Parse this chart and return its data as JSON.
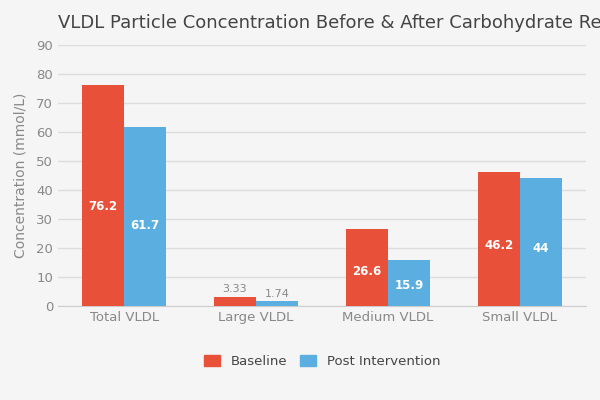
{
  "title": "VLDL Particle Concentration Before & After Carbohydrate Restriction",
  "ylabel": "Concentration (mmol/L)",
  "categories": [
    "Total VLDL",
    "Large VLDL",
    "Medium VLDL",
    "Small VLDL"
  ],
  "baseline": [
    76.2,
    3.33,
    26.6,
    46.2
  ],
  "post_intervention": [
    61.7,
    1.74,
    15.9,
    44
  ],
  "baseline_color": "#E8503A",
  "post_color": "#5BAEE0",
  "background_color": "#F5F5F5",
  "plot_bg_color": "#F5F5F5",
  "ylim": [
    0,
    90
  ],
  "yticks": [
    0,
    10,
    20,
    30,
    40,
    50,
    60,
    70,
    80,
    90
  ],
  "bar_width": 0.32,
  "title_fontsize": 13,
  "label_fontsize": 10,
  "tick_fontsize": 9.5,
  "value_fontsize": 8.5,
  "small_value_fontsize": 8,
  "legend_labels": [
    "Baseline",
    "Post Intervention"
  ],
  "grid_color": "#DDDDDD",
  "spine_color": "#CCCCCC",
  "text_color": "#888888",
  "title_color": "#444444",
  "small_bar_threshold": 8
}
